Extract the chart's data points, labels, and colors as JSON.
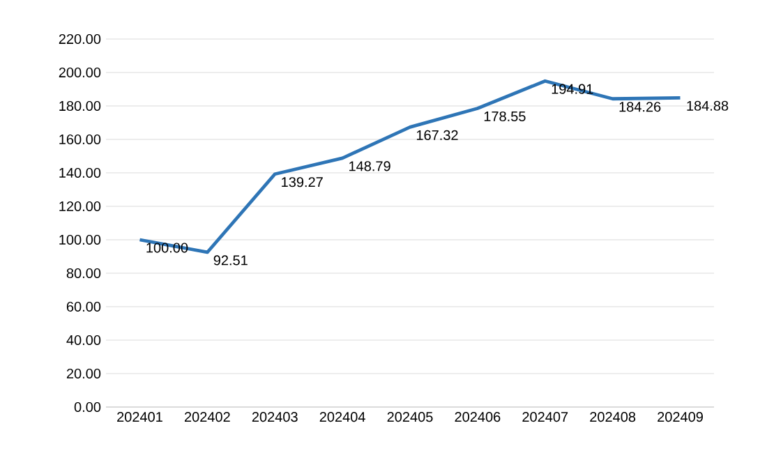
{
  "chart_data": {
    "type": "line",
    "categories": [
      "202401",
      "202402",
      "202403",
      "202404",
      "202405",
      "202406",
      "202407",
      "202408",
      "202409"
    ],
    "series": [
      {
        "color": "#2e75b6",
        "values": [
          100.0,
          92.51,
          139.27,
          148.79,
          167.32,
          178.55,
          194.91,
          184.26,
          184.88
        ],
        "value_labels": [
          "100.00",
          "92.51",
          "139.27",
          "148.79",
          "167.32",
          "178.55",
          "194.91",
          "184.26",
          "184.88"
        ]
      }
    ],
    "ylim": [
      0,
      220
    ],
    "yticks": [
      {
        "value": 0,
        "label": "0.00"
      },
      {
        "value": 20,
        "label": "20.00"
      },
      {
        "value": 40,
        "label": "40.00"
      },
      {
        "value": 60,
        "label": "60.00"
      },
      {
        "value": 80,
        "label": "80.00"
      },
      {
        "value": 100,
        "label": "100.00"
      },
      {
        "value": 120,
        "label": "120.00"
      },
      {
        "value": 140,
        "label": "140.00"
      },
      {
        "value": 160,
        "label": "160.00"
      },
      {
        "value": 180,
        "label": "180.00"
      },
      {
        "value": 200,
        "label": "200.00"
      },
      {
        "value": 220,
        "label": "220.00"
      }
    ],
    "grid": "y",
    "marker": "none",
    "line_style": "solid"
  }
}
